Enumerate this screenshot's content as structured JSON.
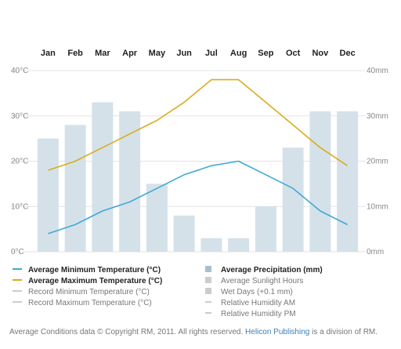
{
  "chart_data": {
    "type": "bar",
    "categories": [
      "Jan",
      "Feb",
      "Mar",
      "Apr",
      "May",
      "Jun",
      "Jul",
      "Aug",
      "Sep",
      "Oct",
      "Nov",
      "Dec"
    ],
    "bars": {
      "name": "Average Precipitation (mm)",
      "values": [
        25,
        28,
        33,
        31,
        15,
        8,
        3,
        3,
        10,
        23,
        31,
        31
      ],
      "color": "#d5e1e9"
    },
    "series": [
      {
        "name": "Average Minimum Temperature (°C)",
        "values": [
          4,
          6,
          9,
          11,
          14,
          17,
          19,
          20,
          17,
          14,
          9,
          6
        ],
        "color": "#3fa9d6"
      },
      {
        "name": "Average Maximum Temperature (°C)",
        "values": [
          18,
          20,
          23,
          26,
          29,
          33,
          38,
          38,
          33,
          28,
          23,
          19
        ],
        "color": "#d9ac1c"
      }
    ],
    "y_left": {
      "ylim": [
        0,
        40
      ],
      "ticks": [
        "0°C",
        "10°C",
        "20°C",
        "30°C",
        "40°C"
      ]
    },
    "y_right": {
      "ylim": [
        0,
        40
      ],
      "ticks": [
        "0mm",
        "10mm",
        "20mm",
        "30mm",
        "40mm"
      ]
    },
    "grid": true
  },
  "legend": {
    "left": [
      {
        "label": "Average Minimum Temperature (°C)",
        "color": "#3fa9d6",
        "bold": true
      },
      {
        "label": "Average Maximum Temperature (°C)",
        "color": "#d9ac1c",
        "bold": true
      },
      {
        "label": "Record Minimum Temperature (°C)",
        "color": "#cccccc",
        "bold": false
      },
      {
        "label": "Record Maximum Temperature (°C)",
        "color": "#cccccc",
        "bold": false
      }
    ],
    "right": [
      {
        "label": "Average Precipitation (mm)",
        "color": "#a9bfcf",
        "kind": "box",
        "bold": true
      },
      {
        "label": "Average Sunlight Hours",
        "color": "#cccccc",
        "kind": "box",
        "bold": false
      },
      {
        "label": "Wet Days (+0.1 mm)",
        "color": "#cccccc",
        "kind": "box",
        "bold": false
      },
      {
        "label": "Relative Humidity AM",
        "color": "#cccccc",
        "kind": "line",
        "bold": false
      },
      {
        "label": "Relative Humidity PM",
        "color": "#cccccc",
        "kind": "line",
        "bold": false
      }
    ]
  },
  "footer": {
    "text": "Average Conditions data © Copyright RM, 2011. All rights reserved.",
    "link": "Helicon Publishing",
    "suffix": "is a division of RM."
  }
}
